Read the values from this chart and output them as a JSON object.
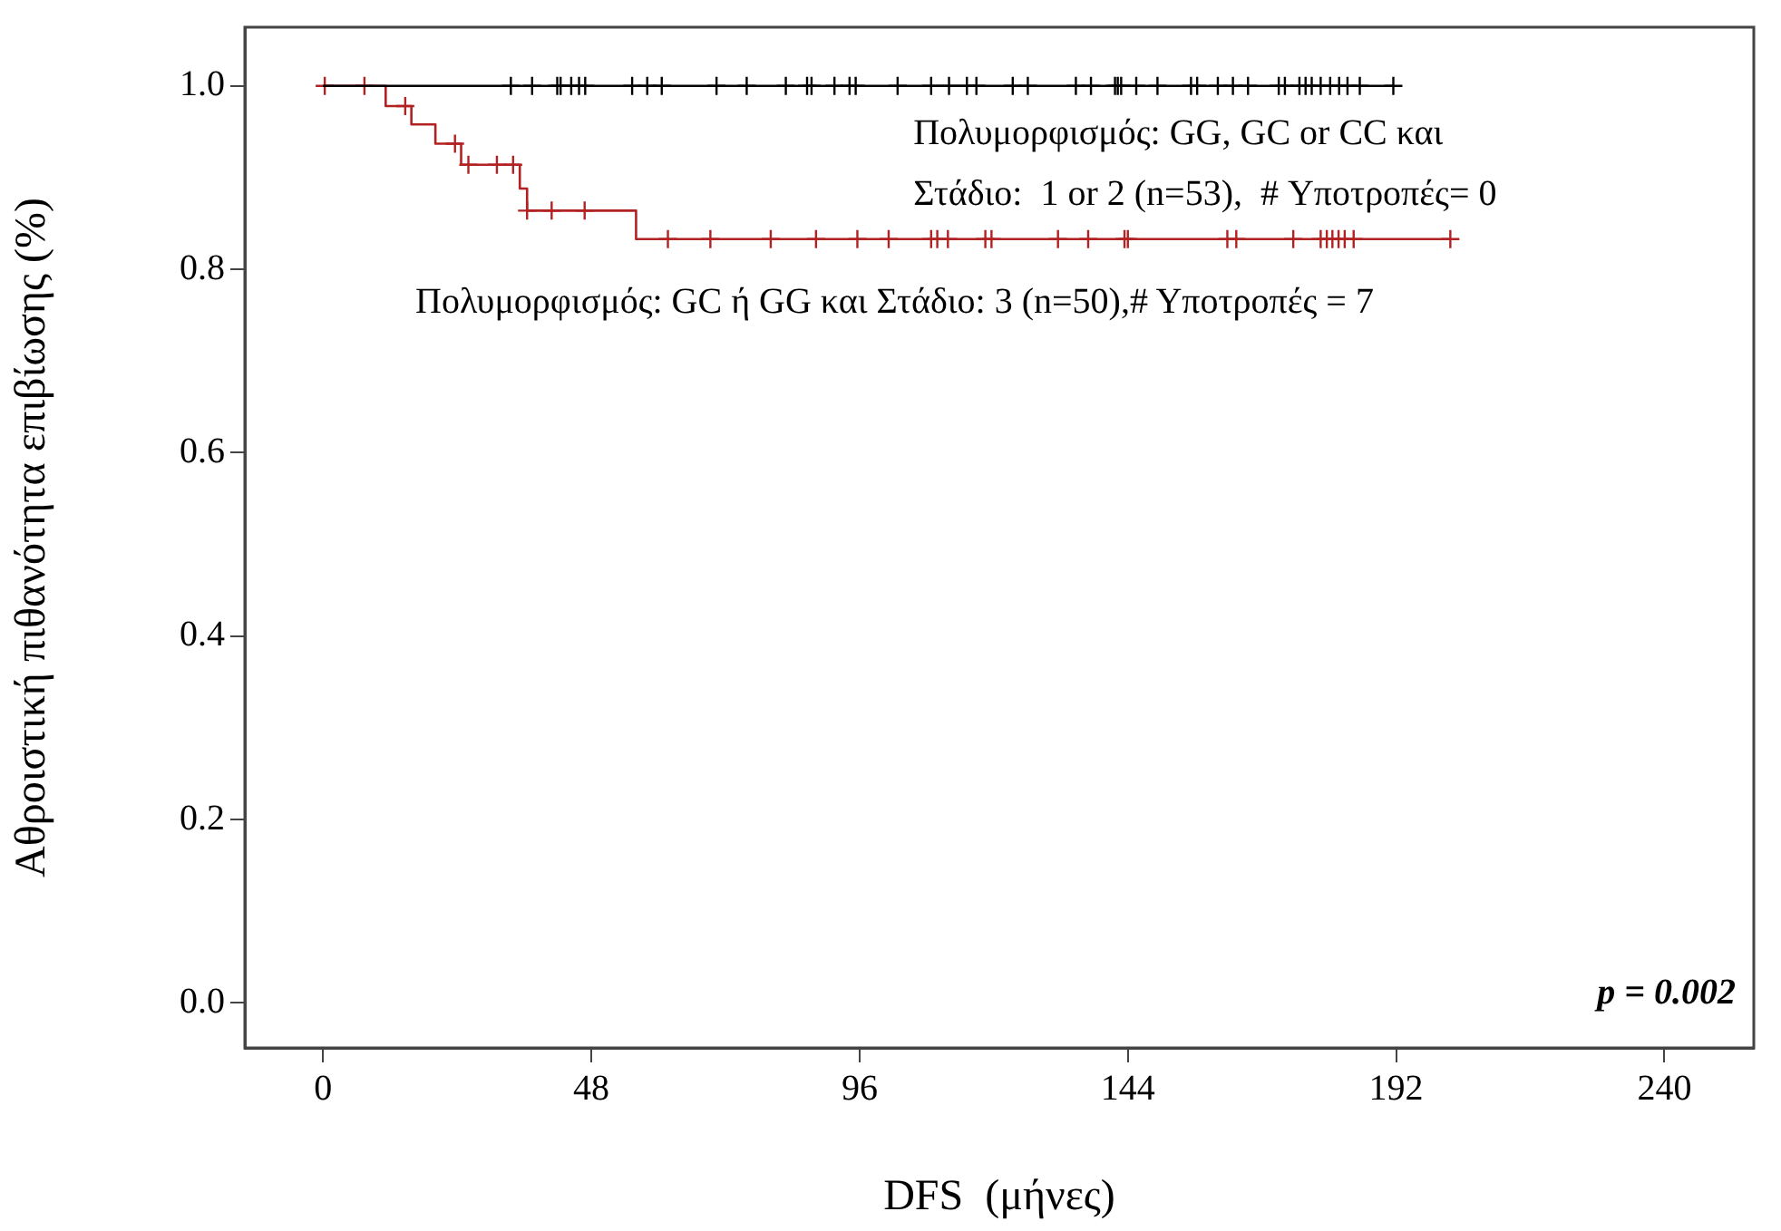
{
  "chart_data": {
    "type": "step",
    "xlabel": "DFS  (μήνες)",
    "ylabel": "Αθροιστική πιθανότητα επιβίωσης (%)",
    "xlim": [
      -14,
      256
    ],
    "xticks": [
      0,
      48,
      96,
      144,
      192,
      240
    ],
    "ylim": [
      -0.049,
      1.064
    ],
    "yticks": [
      {
        "value": 0,
        "label": "0.0"
      },
      {
        "value": 0.2,
        "label": "0.2"
      },
      {
        "value": 0.4,
        "label": "0.4"
      },
      {
        "value": 0.6,
        "label": "0.6"
      },
      {
        "value": 0.8,
        "label": "0.8"
      },
      {
        "value": 1,
        "label": "1.0"
      }
    ],
    "grid": false,
    "legend": false,
    "series": [
      {
        "color": "#000000",
        "x": [
          0,
          191.5
        ],
        "values": [
          1,
          1
        ]
      },
      {
        "type": "scatter",
        "marker": "cross",
        "color": "#000000",
        "x": [
          33.6,
          37.4,
          41.9,
          42.5,
          44.4,
          45.8,
          46.9,
          55.3,
          58,
          60.6,
          70.4,
          75.8,
          82.8,
          86.6,
          87.4,
          91.5,
          94.2,
          95.3,
          102.8,
          108.8,
          112,
          115.2,
          116.9,
          123.4,
          126.1,
          134.7,
          137.4,
          141.7,
          142.2,
          142.8,
          145.5,
          149.3,
          155.3,
          156.4,
          160.1,
          162.8,
          165.5,
          171,
          172.1,
          174.7,
          175.8,
          176.9,
          178.5,
          180.2,
          181.8,
          183.3,
          185.5,
          191.5
        ],
        "values": [
          1,
          1,
          1,
          1,
          1,
          1,
          1,
          1,
          1,
          1,
          1,
          1,
          1,
          1,
          1,
          1,
          1,
          1,
          1,
          1,
          1,
          1,
          1,
          1,
          1,
          1,
          1,
          1,
          1,
          1,
          1,
          1,
          1,
          1,
          1,
          1,
          1,
          1,
          1,
          1,
          1,
          1,
          1,
          1,
          1,
          1,
          1,
          1
        ]
      },
      {
        "color": "#b22222",
        "x": [
          0,
          11.2,
          15.8,
          20.1,
          24.7,
          35.2,
          36.5,
          56,
          201.7
        ],
        "values": [
          1,
          0.978,
          0.958,
          0.937,
          0.914,
          0.888,
          0.864,
          0.833,
          0.833
        ]
      },
      {
        "type": "scatter",
        "marker": "cross",
        "color": "#b22222",
        "x": [
          0.3,
          7.4,
          14.7,
          23.6,
          26,
          31.1,
          34,
          36.5,
          40.9,
          46.8,
          61.7,
          69.3,
          80.1,
          88.2,
          95.6,
          101.2,
          108.8,
          109.9,
          111.8,
          118.5,
          119.6,
          131.5,
          136.9,
          143.4,
          144,
          161.8,
          163.4,
          173.6,
          178.5,
          179.6,
          180.6,
          181.7,
          182.8,
          184.4,
          201.7
        ],
        "values": [
          1,
          1,
          0.978,
          0.937,
          0.914,
          0.914,
          0.914,
          0.864,
          0.864,
          0.864,
          0.833,
          0.833,
          0.833,
          0.833,
          0.833,
          0.833,
          0.833,
          0.833,
          0.833,
          0.833,
          0.833,
          0.833,
          0.833,
          0.833,
          0.833,
          0.833,
          0.833,
          0.833,
          0.833,
          0.833,
          0.833,
          0.833,
          0.833,
          0.833,
          0.833
        ]
      }
    ],
    "annotations": [
      "Πολυμορφισμός: GG, GC or CC και",
      "Στάδιο:  1 or 2 (n=53),  # Υποτροπές= 0",
      "Πολυμορφισμός: GC ή GG και Στάδιο: 3 (n=50),# Υποτροπές = 7",
      "p = 0.002"
    ]
  }
}
